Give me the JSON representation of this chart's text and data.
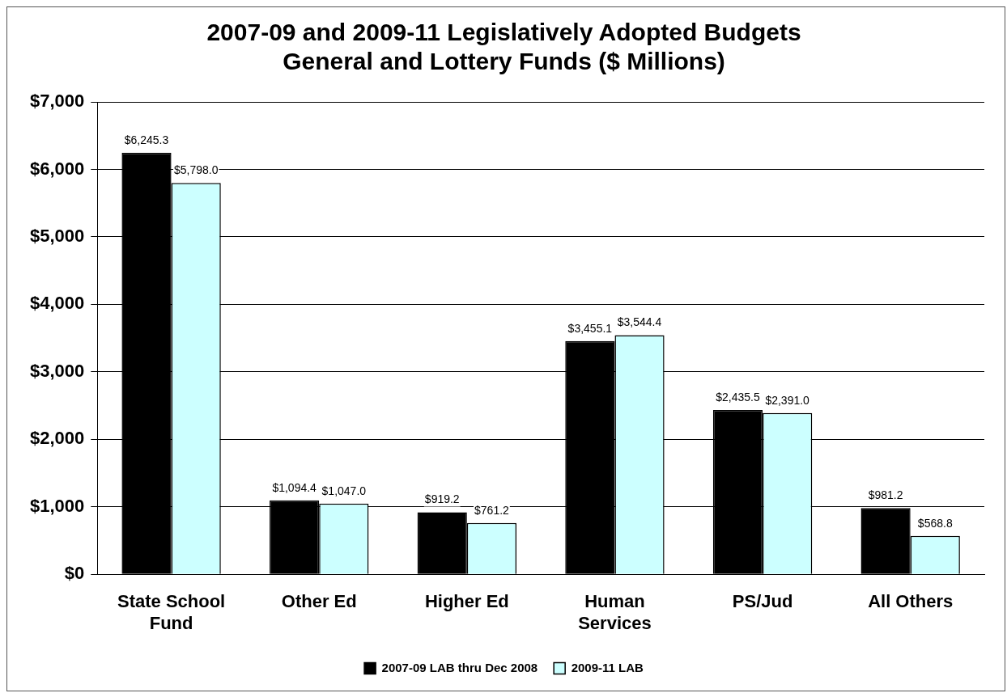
{
  "chart_data": {
    "type": "bar",
    "title": [
      "2007-09 and 2009-11 Legislatively Adopted Budgets",
      "General and Lottery Funds ($ Millions)"
    ],
    "categories": [
      "State School Fund",
      "Other Ed",
      "Higher Ed",
      "Human Services",
      "PS/Jud",
      "All Others"
    ],
    "series": [
      {
        "name": "2007-09 LAB thru Dec 2008",
        "color": "#000000",
        "values": [
          6245.3,
          1094.4,
          919.2,
          3455.1,
          2435.5,
          981.2
        ],
        "value_labels": [
          "$6,245.3",
          "$1,094.4",
          "$919.2",
          "$3,455.1",
          "$2,435.5",
          "$981.2"
        ]
      },
      {
        "name": "2009-11 LAB",
        "color": "#ccffff",
        "values": [
          5798.0,
          1047.0,
          761.2,
          3544.4,
          2391.0,
          568.8
        ],
        "value_labels": [
          "$5,798.0",
          "$1,047.0",
          "$761.2",
          "$3,544.4",
          "$2,391.0",
          "$568.8"
        ]
      }
    ],
    "ylim": [
      0,
      7000
    ],
    "yticks": [
      {
        "value": 0,
        "label": "$0"
      },
      {
        "value": 1000,
        "label": "$1,000"
      },
      {
        "value": 2000,
        "label": "$2,000"
      },
      {
        "value": 3000,
        "label": "$3,000"
      },
      {
        "value": 4000,
        "label": "$4,000"
      },
      {
        "value": 5000,
        "label": "$5,000"
      },
      {
        "value": 6000,
        "label": "$6,000"
      },
      {
        "value": 7000,
        "label": "$7,000"
      }
    ],
    "grid": "y",
    "legend": "bottom"
  }
}
